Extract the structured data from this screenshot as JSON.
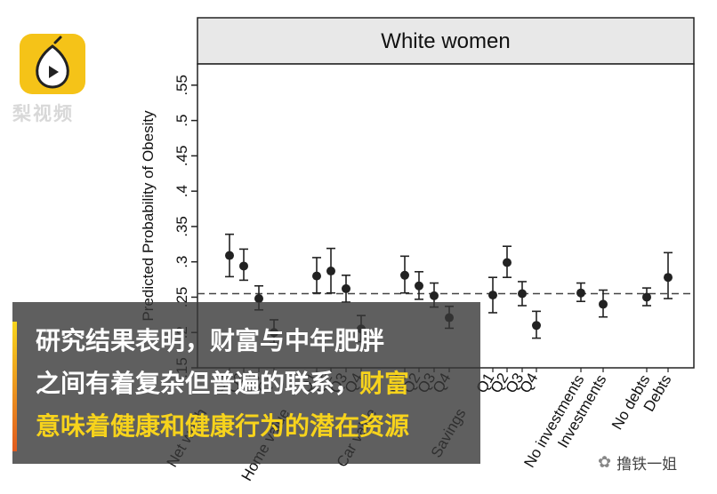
{
  "chart_data": {
    "type": "scatter",
    "title": "White women",
    "ylabel": "Predicted Probability of Obesity",
    "ylim": [
      0.15,
      0.58
    ],
    "y_ticks": [
      ".15",
      ".2",
      ".25",
      ".3",
      ".35",
      ".4",
      ".45",
      ".5",
      ".55"
    ],
    "y_tick_values": [
      0.15,
      0.2,
      0.25,
      0.3,
      0.35,
      0.4,
      0.45,
      0.5,
      0.55
    ],
    "reference_line": 0.255,
    "group_labels": [
      "Net worth",
      "Home value",
      "Car value",
      "Savings",
      "No investments",
      "Investments",
      "No debts",
      "Debts"
    ],
    "quartile_labels": [
      "Q1",
      "Q2",
      "Q3",
      "Q4"
    ],
    "points": [
      {
        "group": "Net worth",
        "label": "Q1",
        "y": 0.309,
        "lo": 0.279,
        "hi": 0.339
      },
      {
        "group": "Net worth",
        "label": "Q2",
        "y": 0.294,
        "lo": 0.274,
        "hi": 0.318
      },
      {
        "group": "Net worth",
        "label": "Q3",
        "y": 0.248,
        "lo": 0.232,
        "hi": 0.266
      },
      {
        "group": "Net worth",
        "label": "Q4",
        "y": 0.2,
        "lo": 0.185,
        "hi": 0.218
      },
      {
        "group": "Home value",
        "label": "Q1",
        "y": 0.28,
        "lo": 0.256,
        "hi": 0.306
      },
      {
        "group": "Home value",
        "label": "Q2",
        "y": 0.287,
        "lo": 0.256,
        "hi": 0.319
      },
      {
        "group": "Home value",
        "label": "Q3",
        "y": 0.262,
        "lo": 0.243,
        "hi": 0.281
      },
      {
        "group": "Home value",
        "label": "Q4",
        "y": 0.205,
        "lo": 0.187,
        "hi": 0.224
      },
      {
        "group": "Car value",
        "label": "Q1",
        "y": 0.281,
        "lo": 0.256,
        "hi": 0.308
      },
      {
        "group": "Car value",
        "label": "Q2",
        "y": 0.266,
        "lo": 0.247,
        "hi": 0.286
      },
      {
        "group": "Car value",
        "label": "Q3",
        "y": 0.252,
        "lo": 0.236,
        "hi": 0.27
      },
      {
        "group": "Car value",
        "label": "Q4",
        "y": 0.221,
        "lo": 0.206,
        "hi": 0.237
      },
      {
        "group": "Savings",
        "label": "Q1",
        "y": 0.253,
        "lo": 0.228,
        "hi": 0.278
      },
      {
        "group": "Savings",
        "label": "Q2",
        "y": 0.299,
        "lo": 0.278,
        "hi": 0.322
      },
      {
        "group": "Savings",
        "label": "Q3",
        "y": 0.255,
        "lo": 0.238,
        "hi": 0.272
      },
      {
        "group": "Savings",
        "label": "Q4",
        "y": 0.21,
        "lo": 0.192,
        "hi": 0.23
      },
      {
        "group": "Investments",
        "label": "No investments",
        "y": 0.256,
        "lo": 0.244,
        "hi": 0.27
      },
      {
        "group": "Investments",
        "label": "Investments",
        "y": 0.24,
        "lo": 0.222,
        "hi": 0.26
      },
      {
        "group": "Debts",
        "label": "No debts",
        "y": 0.25,
        "lo": 0.238,
        "hi": 0.263
      },
      {
        "group": "Debts",
        "label": "Debts",
        "y": 0.278,
        "lo": 0.248,
        "hi": 0.313
      }
    ]
  },
  "logo": {
    "text": "梨视频"
  },
  "subtitle": {
    "line1": "研究结果表明，财富与中年肥胖",
    "line2_a": "之间有着复杂但普遍的联系，",
    "line2_b": "财富",
    "line3": "意味着健康和健康行为的潜在资源"
  },
  "watermark": {
    "text": "撸铁一姐"
  }
}
